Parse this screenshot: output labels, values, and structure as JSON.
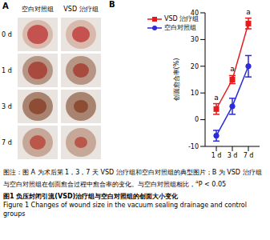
{
  "panel_labels": [
    "A",
    "B"
  ],
  "panel_a": {
    "column_heads": [
      "空白对照组",
      "VSD 治疗组"
    ],
    "row_labels": [
      "0 d",
      "1 d",
      "3 d",
      "7 d"
    ]
  },
  "chart_data": {
    "type": "line",
    "y_label": "创面愈合率(%)",
    "categories": [
      "1 d",
      "3 d",
      "7 d"
    ],
    "series": [
      {
        "name": "VSD 治疗组",
        "color": "#e41a1c",
        "marker": "square",
        "values": [
          4,
          15,
          36
        ],
        "errors": [
          2,
          1.5,
          2
        ]
      },
      {
        "name": "空白对照组",
        "color": "#2b2bd9",
        "marker": "circle",
        "values": [
          -6,
          5,
          20
        ],
        "errors": [
          2,
          3,
          4
        ]
      }
    ],
    "ylim": [
      -10,
      40
    ],
    "yticks": [
      -10,
      0,
      10,
      20,
      30,
      40
    ],
    "grid": false,
    "legend": "upper left",
    "annotations": [
      {
        "category": "1 d",
        "text": "a"
      },
      {
        "category": "3 d",
        "text": "a"
      },
      {
        "category": "7 d",
        "text": "a"
      }
    ]
  },
  "caption": {
    "note": "图注：图 A 为术后第 1，3，7 天 VSD 治疗组和空白对照组的典型图片；B 为 VSD 治疗组与空白对照组在创面愈合过程中愈合率的变化。与空白对照组相比，",
    "note_sup": "a",
    "note_tail": "P < 0.05",
    "title_zh": "图1 负压封闭引流(VSD)治疗组与空白对照组的创面大小变化",
    "title_en": "Figure 1 Changes of wound size in the vacuum sealing drainage and control groups"
  }
}
